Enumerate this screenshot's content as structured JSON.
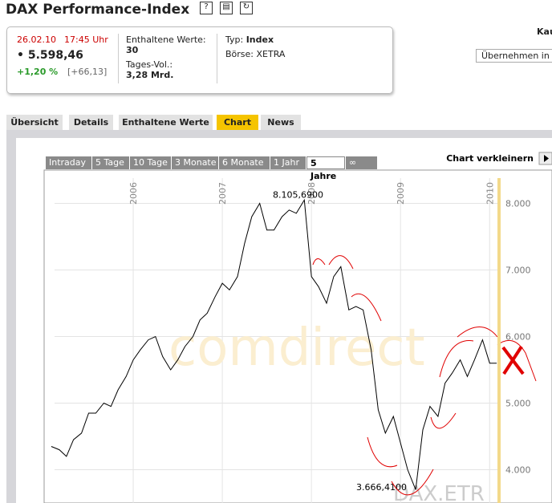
{
  "header": {
    "title": "DAX Performance-Index",
    "right_label": "Kau",
    "button": "Übernehmen in"
  },
  "quote": {
    "date": "26.02.10",
    "time": "17:45 Uhr",
    "price": "5.598,46",
    "change_pct": "+1,20 %",
    "change_abs": "[+66,13]",
    "components_label": "Enthaltene Werte:",
    "components": "30",
    "volume_label": "Tages-Vol.:",
    "volume": "3,28 Mrd.",
    "type_label": "Typ:",
    "type": "Index",
    "exchange_label": "Börse:",
    "exchange": "XETRA"
  },
  "tabs": [
    "Übersicht",
    "Details",
    "Enthaltene Werte",
    "Chart",
    "News"
  ],
  "chart_tabs": [
    "Intraday",
    "5 Tage",
    "10 Tage",
    "3 Monate",
    "6 Monate",
    "1 Jahr",
    "5 Jahre",
    "∞"
  ],
  "chart_shrink": "Chart verkleinern",
  "watermark": "comdirect",
  "symbol": "DAX.ETR",
  "chart_data": {
    "type": "line",
    "x": [
      2005.08,
      2005.17,
      2005.25,
      2005.33,
      2005.42,
      2005.5,
      2005.58,
      2005.67,
      2005.75,
      2005.83,
      2005.92,
      2006.0,
      2006.08,
      2006.17,
      2006.25,
      2006.33,
      2006.42,
      2006.5,
      2006.58,
      2006.67,
      2006.75,
      2006.83,
      2006.92,
      2007.0,
      2007.08,
      2007.17,
      2007.25,
      2007.33,
      2007.42,
      2007.5,
      2007.58,
      2007.67,
      2007.75,
      2007.83,
      2007.92,
      2008.0,
      2008.08,
      2008.17,
      2008.25,
      2008.33,
      2008.42,
      2008.5,
      2008.58,
      2008.67,
      2008.75,
      2008.83,
      2008.92,
      2009.0,
      2009.08,
      2009.17,
      2009.25,
      2009.33,
      2009.42,
      2009.5,
      2009.58,
      2009.67,
      2009.75,
      2009.83,
      2009.92,
      2010.0,
      2010.08
    ],
    "series": [
      {
        "name": "DAX",
        "color": "#000000",
        "values": [
          4350,
          4300,
          4200,
          4450,
          4550,
          4850,
          4850,
          5000,
          4950,
          5200,
          5400,
          5650,
          5800,
          5950,
          6000,
          5700,
          5500,
          5650,
          5850,
          6000,
          6250,
          6350,
          6600,
          6800,
          6700,
          6900,
          7400,
          7800,
          8000,
          7600,
          7600,
          7800,
          7900,
          7850,
          8050,
          6900,
          6750,
          6500,
          6900,
          7050,
          6400,
          6450,
          6400,
          5800,
          4900,
          4550,
          4800,
          4400,
          4000,
          3700,
          4600,
          4950,
          4800,
          5300,
          5450,
          5650,
          5400,
          5650,
          5950,
          5600,
          5600
        ]
      }
    ],
    "xlim": [
      2005.0,
      2010.7
    ],
    "xticks": [
      2006,
      2007,
      2008,
      2009,
      2010
    ],
    "ylim": [
      3500,
      8500
    ],
    "yticks": [
      {
        "value": 4000,
        "label": "4.000"
      },
      {
        "value": 5000,
        "label": "5.000"
      },
      {
        "value": 6000,
        "label": "6.000"
      },
      {
        "value": 7000,
        "label": "7.000"
      },
      {
        "value": 8000,
        "label": "8.000"
      }
    ],
    "grid": true,
    "annotations": [
      {
        "value": 8105.69,
        "label": "8.105,6900"
      },
      {
        "value": 3666.41,
        "label": "3.666,4100"
      }
    ]
  }
}
